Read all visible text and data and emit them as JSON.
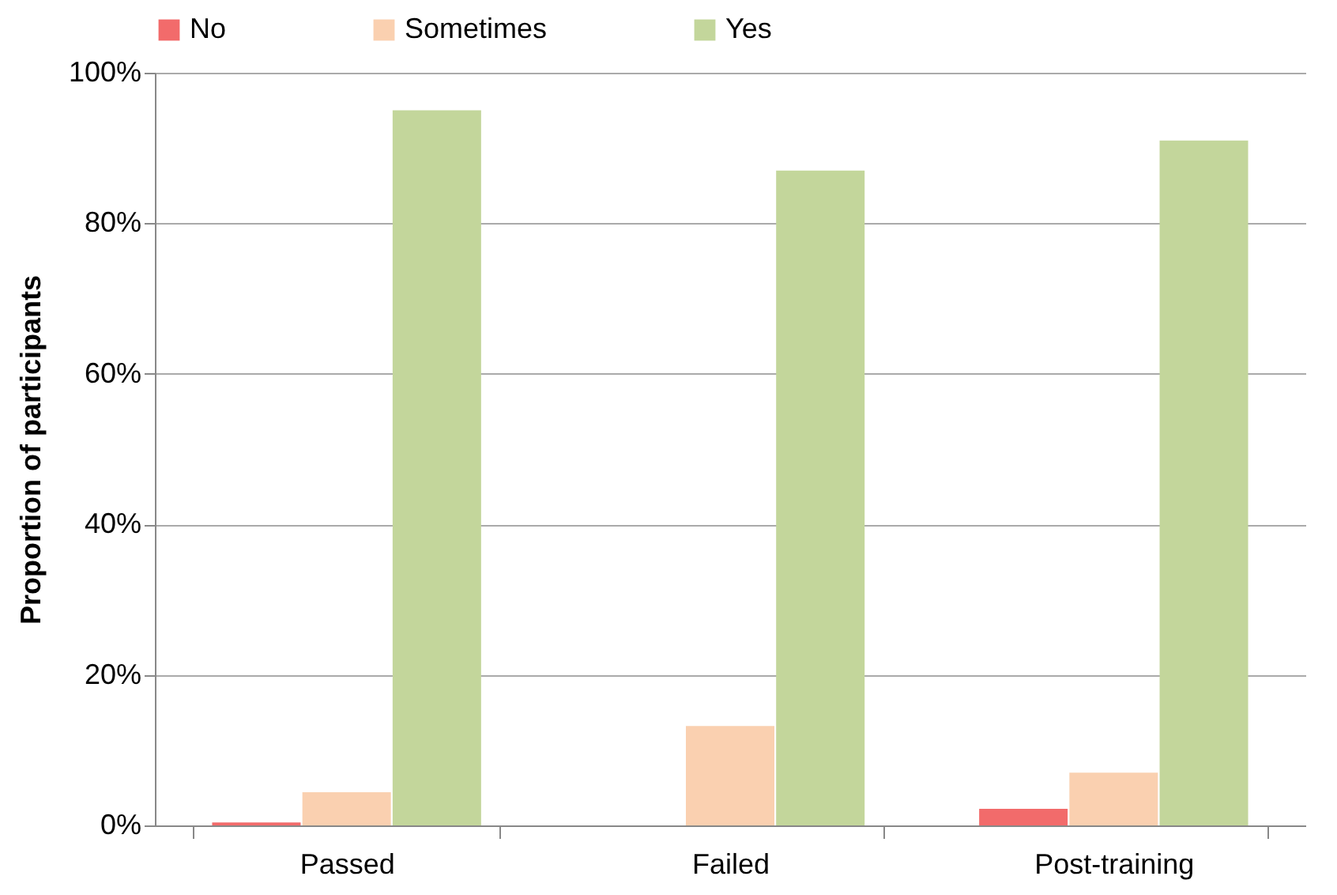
{
  "chart_data": {
    "type": "bar",
    "ylabel": "Proportion of participants",
    "categories": [
      "Passed",
      "Failed",
      "Post-training"
    ],
    "series": [
      {
        "name": "No",
        "color": "#f26b6b",
        "values": [
          0.4,
          0,
          2.2
        ]
      },
      {
        "name": "Sometimes",
        "color": "#fad0b0",
        "values": [
          4.4,
          13.2,
          7.0
        ]
      },
      {
        "name": "Yes",
        "color": "#c3d69b",
        "values": [
          95,
          87,
          91
        ]
      }
    ],
    "ylim": [
      0,
      100
    ],
    "yticks": [
      {
        "value": 0,
        "label": "0%"
      },
      {
        "value": 20,
        "label": "20%"
      },
      {
        "value": 40,
        "label": "40%"
      },
      {
        "value": 60,
        "label": "60%"
      },
      {
        "value": 80,
        "label": "80%"
      },
      {
        "value": 100,
        "label": "100%"
      }
    ],
    "grid": "y",
    "legend": "top"
  }
}
